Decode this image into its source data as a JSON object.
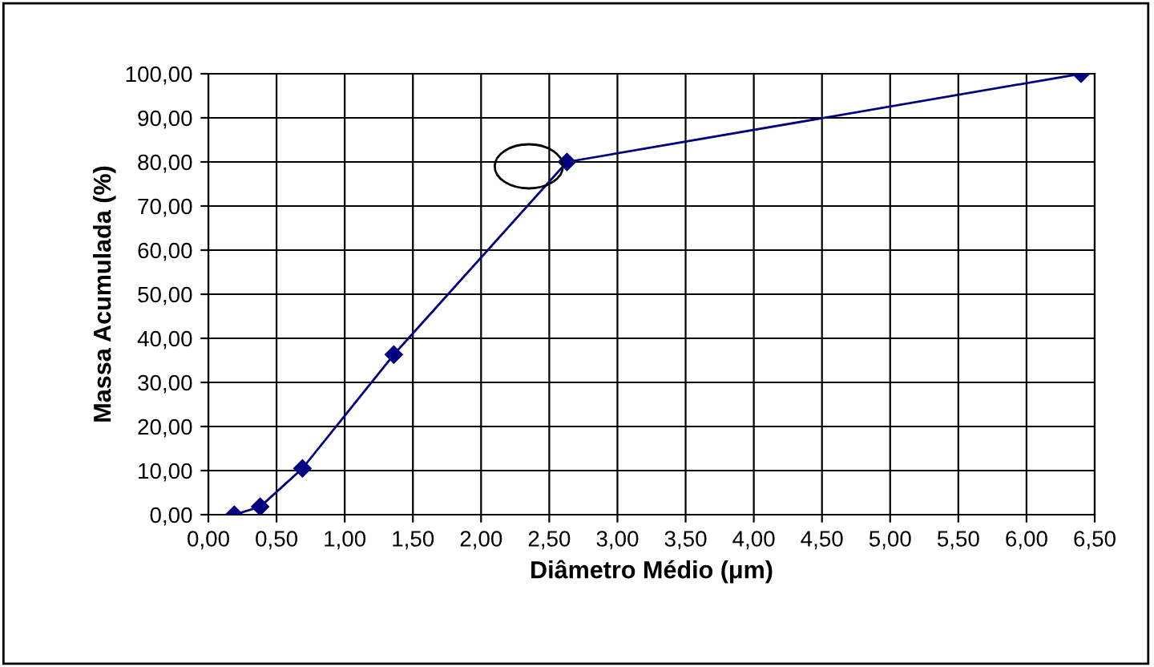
{
  "chart_data": {
    "type": "line",
    "xlabel": "Diâmetro Médio (μm)",
    "ylabel": "Massa Acumulada (%)",
    "x": [
      0.19,
      0.38,
      0.69,
      1.36,
      2.63,
      6.4
    ],
    "series": [
      {
        "color": "#000080",
        "values": [
          0,
          1.8,
          10.5,
          36.3,
          80,
          100
        ]
      }
    ],
    "xlim": [
      0,
      6.5
    ],
    "ylim": [
      0,
      100
    ],
    "xticks": [
      {
        "value": 0,
        "label": "0,00"
      },
      {
        "value": 0.5,
        "label": "0,50"
      },
      {
        "value": 1,
        "label": "1,00"
      },
      {
        "value": 1.5,
        "label": "1,50"
      },
      {
        "value": 2,
        "label": "2,00"
      },
      {
        "value": 2.5,
        "label": "2,50"
      },
      {
        "value": 3,
        "label": "3,00"
      },
      {
        "value": 3.5,
        "label": "3,50"
      },
      {
        "value": 4,
        "label": "4,00"
      },
      {
        "value": 4.5,
        "label": "4,50"
      },
      {
        "value": 5,
        "label": "5,00"
      },
      {
        "value": 5.5,
        "label": "5,50"
      },
      {
        "value": 6,
        "label": "6,00"
      },
      {
        "value": 6.5,
        "label": "6,50"
      }
    ],
    "yticks": [
      {
        "value": 0,
        "label": "0,00"
      },
      {
        "value": 10,
        "label": "10,00"
      },
      {
        "value": 20,
        "label": "20,00"
      },
      {
        "value": 30,
        "label": "30,00"
      },
      {
        "value": 40,
        "label": "40,00"
      },
      {
        "value": 50,
        "label": "50,00"
      },
      {
        "value": 60,
        "label": "60,00"
      },
      {
        "value": 70,
        "label": "70,00"
      },
      {
        "value": 80,
        "label": "80,00"
      },
      {
        "value": 90,
        "label": "90,00"
      },
      {
        "value": 100,
        "label": "100,00"
      }
    ],
    "grid": true,
    "marker": "diamond",
    "line_style": "solid",
    "legend": false
  }
}
